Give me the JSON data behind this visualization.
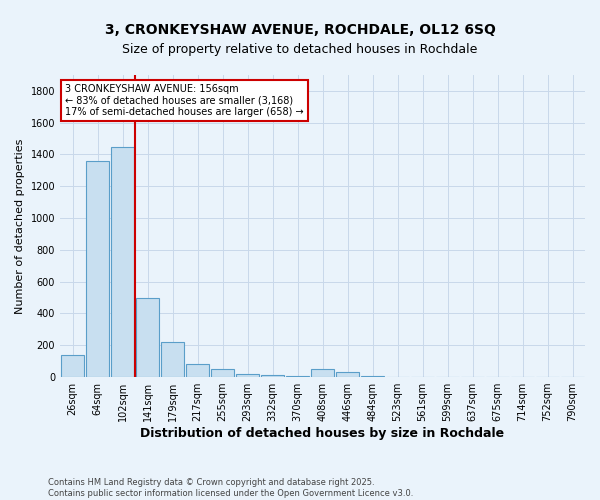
{
  "title_line1": "3, CRONKEYSHAW AVENUE, ROCHDALE, OL12 6SQ",
  "title_line2": "Size of property relative to detached houses in Rochdale",
  "xlabel": "Distribution of detached houses by size in Rochdale",
  "ylabel": "Number of detached properties",
  "categories": [
    "26sqm",
    "64sqm",
    "102sqm",
    "141sqm",
    "179sqm",
    "217sqm",
    "255sqm",
    "293sqm",
    "332sqm",
    "370sqm",
    "408sqm",
    "446sqm",
    "484sqm",
    "523sqm",
    "561sqm",
    "599sqm",
    "637sqm",
    "675sqm",
    "714sqm",
    "752sqm",
    "790sqm"
  ],
  "values": [
    140,
    1360,
    1450,
    500,
    220,
    85,
    50,
    20,
    15,
    5,
    50,
    30,
    5,
    0,
    0,
    0,
    0,
    0,
    0,
    0,
    0
  ],
  "bar_color": "#c8dff0",
  "bar_edgecolor": "#5a9ec9",
  "bar_linewidth": 0.8,
  "grid_color": "#c8d8ea",
  "background_color": "#eaf3fb",
  "vline_x_index": 2.5,
  "vline_color": "#cc0000",
  "vline_linewidth": 1.5,
  "annotation_title": "3 CRONKEYSHAW AVENUE: 156sqm",
  "annotation_line1": "← 83% of detached houses are smaller (3,168)",
  "annotation_line2": "17% of semi-detached houses are larger (658) →",
  "annotation_box_edgecolor": "#cc0000",
  "annotation_box_facecolor": "#ffffff",
  "footnote_line1": "Contains HM Land Registry data © Crown copyright and database right 2025.",
  "footnote_line2": "Contains public sector information licensed under the Open Government Licence v3.0.",
  "ylim": [
    0,
    1900
  ],
  "yticks": [
    0,
    200,
    400,
    600,
    800,
    1000,
    1200,
    1400,
    1600,
    1800
  ],
  "figsize": [
    6.0,
    5.0
  ],
  "dpi": 100,
  "title_fontsize": 10,
  "subtitle_fontsize": 9,
  "ylabel_fontsize": 8,
  "xlabel_fontsize": 9,
  "tick_fontsize": 7,
  "annot_fontsize": 7,
  "footnote_fontsize": 6
}
